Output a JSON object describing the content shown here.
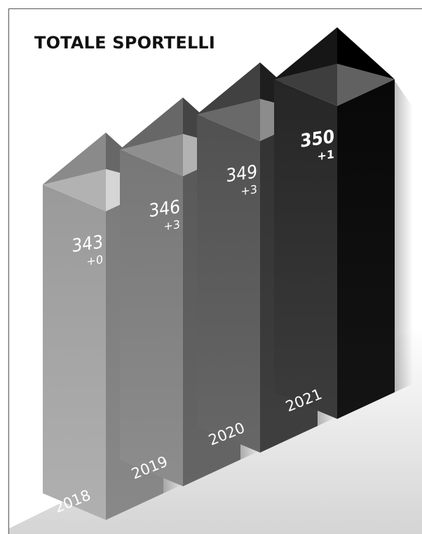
{
  "chart_data": {
    "type": "bar",
    "title": "TOTALE SPORTELLI",
    "categories": [
      "2018",
      "2019",
      "2020",
      "2021"
    ],
    "values": [
      343,
      346,
      349,
      350
    ],
    "value_labels": [
      "343",
      "346",
      "349",
      "350"
    ],
    "deltas": [
      "+0",
      "+3",
      "+3",
      "+1"
    ],
    "style": "3d-isometric-columns",
    "grid": false,
    "legend": "none",
    "colors": {
      "2018": "#9e9e9e",
      "2019": "#7b7b7b",
      "2020": "#555555",
      "2021": "#2a2a2a"
    }
  }
}
